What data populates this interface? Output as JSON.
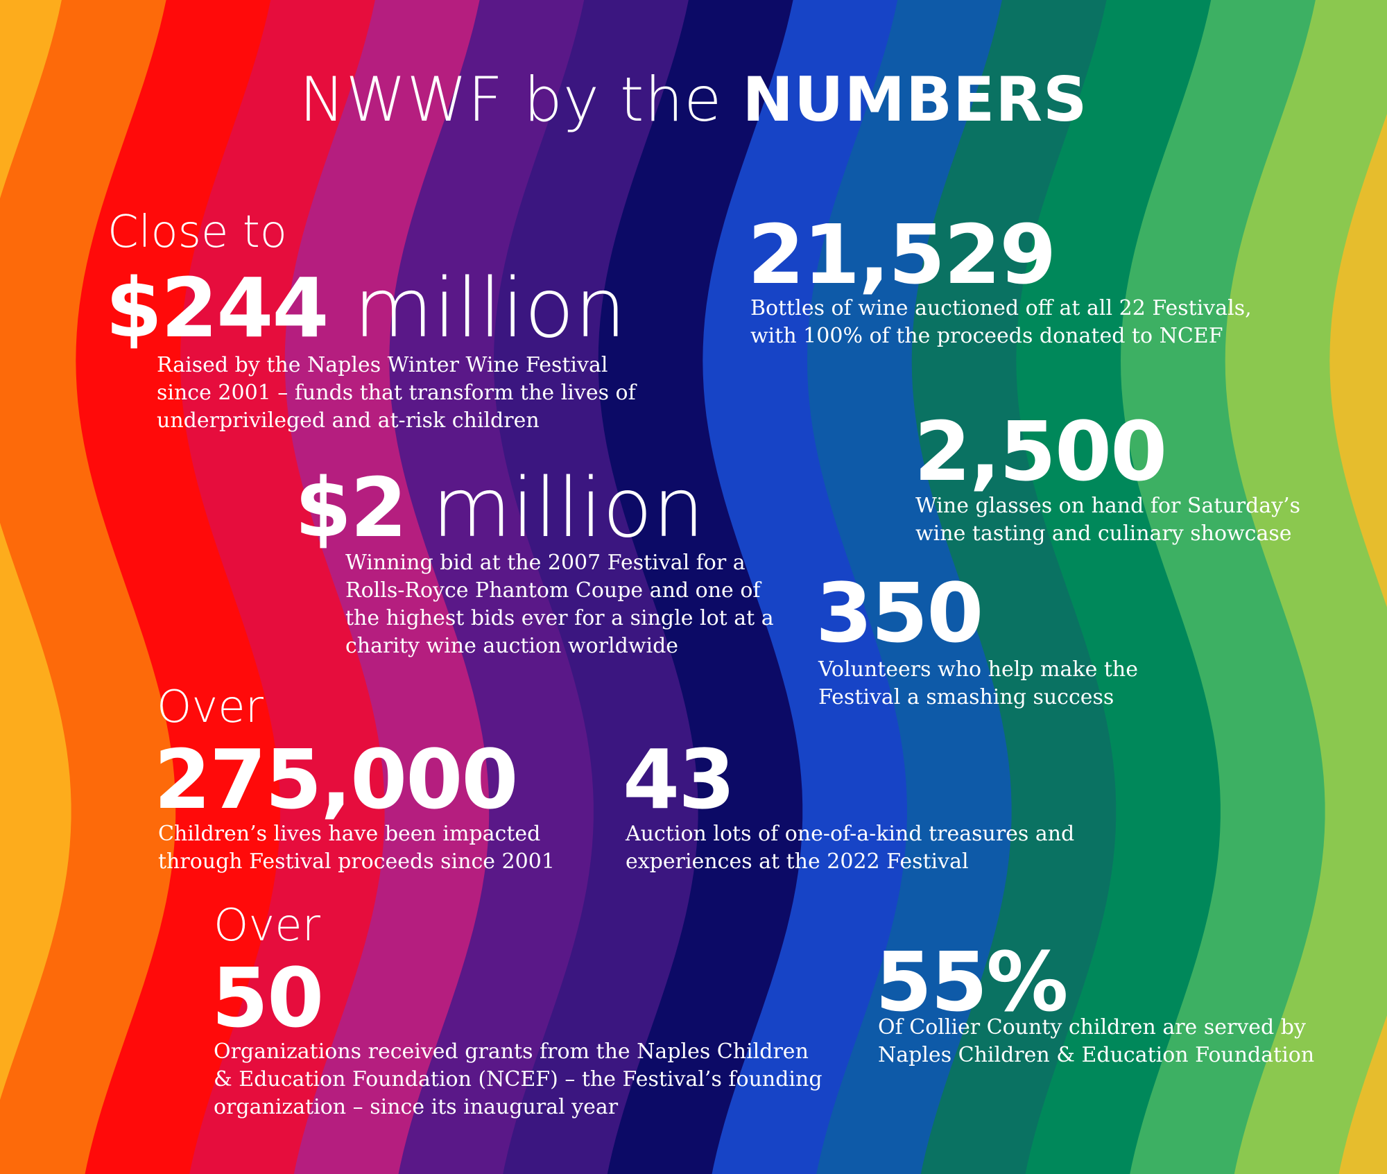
{
  "title": {
    "part_light": "NWWF by the ",
    "part_bold": "NUMBERS"
  },
  "background": {
    "bands": [
      "#fdac1c",
      "#fd6a0a",
      "#ff0a0a",
      "#e60d3d",
      "#b51e7f",
      "#5a1888",
      "#3b1680",
      "#0c0a66",
      "#1744c6",
      "#0e5aa8",
      "#0a7262",
      "#00885a",
      "#3db063",
      "#8bc84f",
      "#e6bd2d"
    ]
  },
  "stats": [
    {
      "pre": "Close to",
      "number": "$244",
      "unit": " million",
      "desc": [
        "Raised by the Naples Winter Wine Festival",
        "since 2001 – funds that transform the lives of",
        "underprivileged and at-risk children"
      ]
    },
    {
      "pre": "",
      "number": "21,529",
      "unit": "",
      "desc": [
        "Bottles of wine auctioned off at all 22 Festivals,",
        "with 100% of the proceeds donated to NCEF"
      ]
    },
    {
      "pre": "",
      "number": "2,500",
      "unit": "",
      "desc": [
        "Wine glasses on hand for Saturday’s",
        "wine tasting and culinary showcase"
      ]
    },
    {
      "pre": "",
      "number": "$2",
      "unit": " million",
      "desc": [
        "Winning bid at the 2007 Festival for a",
        "Rolls-Royce Phantom Coupe and one of",
        "the highest bids ever for a single lot at a",
        "charity wine auction worldwide"
      ]
    },
    {
      "pre": "",
      "number": "350",
      "unit": "",
      "desc": [
        "Volunteers who help make the",
        "Festival a smashing success"
      ]
    },
    {
      "pre": "Over",
      "number": "275,000",
      "unit": "",
      "desc": [
        "Children’s lives have been impacted",
        "through Festival proceeds since 2001"
      ]
    },
    {
      "pre": "",
      "number": "43",
      "unit": "",
      "desc": [
        "Auction lots of one-of-a-kind treasures and",
        "experiences at the 2022 Festival"
      ]
    },
    {
      "pre": "Over",
      "number": "50",
      "unit": "",
      "desc": [
        "Organizations received grants from the Naples Children",
        "& Education Foundation (NCEF) – the Festival’s founding",
        "organization – since its inaugural year"
      ]
    },
    {
      "pre": "",
      "number": "55%",
      "unit": "",
      "desc": [
        "Of Collier County children are served by",
        "Naples Children & Education Foundation"
      ]
    }
  ]
}
